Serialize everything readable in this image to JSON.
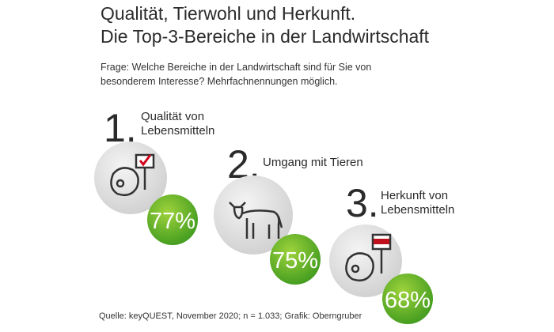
{
  "header": {
    "title": [
      "Qualität, Tierwohl und Herkunft.",
      "Die Top-3-Bereiche in der Landwirtschaft"
    ],
    "question": [
      "Frage: Welche Bereiche in der Landwirtschaft sind für Sie von",
      "besonderem Interesse? Mehrfachnennungen möglich."
    ]
  },
  "items": [
    {
      "rank": "1.",
      "label": [
        "Qualität von",
        "Lebensmitteln"
      ],
      "value": "77%"
    },
    {
      "rank": "2.",
      "label": [
        "Umgang mit Tieren"
      ],
      "value": "75%"
    },
    {
      "rank": "3.",
      "label": [
        "Herkunft von",
        "Lebensmitteln"
      ],
      "value": "68%"
    }
  ],
  "footer": {
    "source": "Quelle: keyQUEST, November 2020; n = 1.033; Grafik: Oberngruber"
  }
}
